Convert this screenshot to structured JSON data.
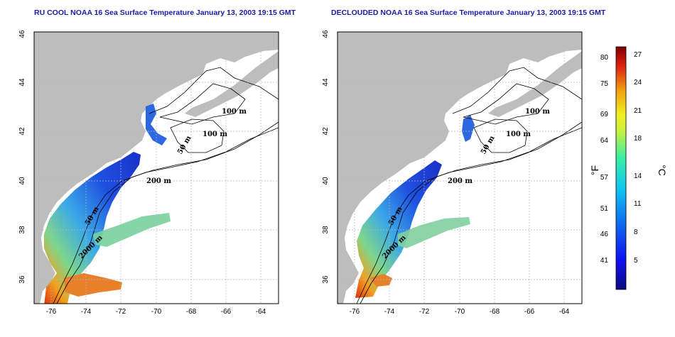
{
  "titles": {
    "left": "RU COOL NOAA 16 Sea Surface Temperature January 13, 2003 19:15 GMT",
    "right": "DECLOUDED NOAA 16 Sea Surface Temperature January 13, 2003 19:15 GMT"
  },
  "map_axes": {
    "lon_ticks": [
      "-76",
      "-74",
      "-72",
      "-70",
      "-68",
      "-66",
      "-64"
    ],
    "lat_ticks": [
      "36",
      "38",
      "40",
      "42",
      "44",
      "46"
    ]
  },
  "contour_labels": {
    "left": [
      "100 m",
      "100 m",
      "50 m",
      "200 m",
      "50 m",
      "2000 m"
    ],
    "right": [
      "100 m",
      "100 m",
      "50 m",
      "200 m",
      "50 m",
      "2000 m"
    ]
  },
  "colorbar": {
    "fahrenheit_label": "°F",
    "celsius_label": "°C",
    "fahrenheit_ticks": [
      "80",
      "75",
      "69",
      "64",
      "57",
      "51",
      "46",
      "41"
    ],
    "celsius_ticks": [
      "27",
      "24",
      "21",
      "18",
      "14",
      "11",
      "8",
      "5"
    ]
  },
  "colors": {
    "land": "#bdbdbd",
    "title": "#1a1aa6",
    "cold": "#1e3cd2",
    "warm": "#e03010"
  }
}
